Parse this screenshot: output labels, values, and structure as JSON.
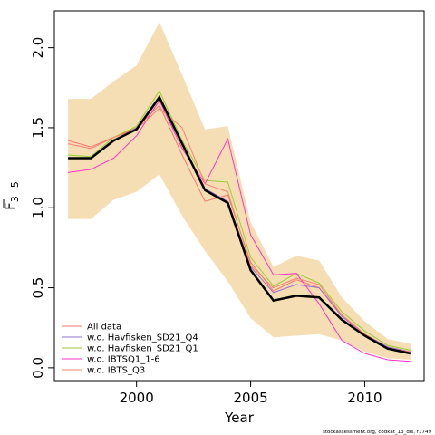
{
  "chart_data": {
    "type": "line",
    "xlabel": "Year",
    "ylabel_base": "F",
    "ylabel_sub": "3−5",
    "xlim": [
      1996.4,
      2012.6
    ],
    "ylim": [
      -0.08,
      2.23
    ],
    "xticks": [
      2000,
      2005,
      2010
    ],
    "yticks": [
      0.0,
      0.5,
      1.0,
      1.5,
      2.0
    ],
    "ytick_labels": [
      "0.0",
      "0.5",
      "1.0",
      "1.5",
      "2.0"
    ],
    "grid": false,
    "legend_position": "bottom-left",
    "band": {
      "color": "#F5DEB3",
      "x": [
        1997,
        1998,
        1999,
        2000,
        2001,
        2002,
        2003,
        2004,
        2005,
        2006,
        2007,
        2008,
        2009,
        2010,
        2011,
        2012
      ],
      "lower": [
        0.93,
        0.93,
        1.05,
        1.1,
        1.21,
        0.95,
        0.73,
        0.54,
        0.31,
        0.19,
        0.2,
        0.21,
        0.17,
        0.1,
        0.06,
        0.05
      ],
      "upper": [
        1.68,
        1.68,
        1.79,
        1.89,
        2.16,
        1.83,
        1.49,
        1.51,
        0.91,
        0.63,
        0.7,
        0.67,
        0.44,
        0.29,
        0.18,
        0.15
      ]
    },
    "main_series": {
      "color": "#000000",
      "values": [
        1.31,
        1.31,
        1.42,
        1.49,
        1.69,
        1.4,
        1.11,
        1.03,
        0.61,
        0.42,
        0.45,
        0.44,
        0.3,
        0.2,
        0.12,
        0.09
      ]
    },
    "series": [
      {
        "name": "All data",
        "color": "#F8766D",
        "values": [
          1.42,
          1.38,
          1.44,
          1.5,
          1.64,
          1.33,
          1.04,
          1.08,
          0.66,
          0.48,
          0.55,
          0.5,
          0.33,
          0.21,
          0.13,
          0.1
        ]
      },
      {
        "name": "w.o. Havfisken_SD21_Q4",
        "color": "#9A6FD6",
        "values": [
          1.31,
          1.31,
          1.42,
          1.5,
          1.7,
          1.41,
          1.12,
          1.04,
          0.63,
          0.47,
          0.52,
          0.5,
          0.32,
          0.21,
          0.13,
          0.1
        ]
      },
      {
        "name": "w.o. Havfisken_SD21_Q1",
        "color": "#9ACD32",
        "values": [
          1.33,
          1.32,
          1.44,
          1.51,
          1.73,
          1.42,
          1.17,
          1.16,
          0.69,
          0.51,
          0.59,
          0.53,
          0.35,
          0.23,
          0.14,
          0.11
        ]
      },
      {
        "name": "w.o. IBTSQ1_1-6",
        "color": "#FF33CC",
        "values": [
          1.22,
          1.24,
          1.31,
          1.45,
          1.67,
          1.37,
          1.15,
          1.43,
          0.83,
          0.58,
          0.59,
          0.4,
          0.17,
          0.09,
          0.05,
          0.04
        ]
      },
      {
        "name": "w.o. IBTS_Q3",
        "color": "#FA8072",
        "values": [
          1.4,
          1.37,
          1.44,
          1.49,
          1.62,
          1.5,
          1.15,
          1.1,
          0.64,
          0.5,
          0.56,
          0.52,
          0.33,
          0.21,
          0.12,
          0.1
        ]
      }
    ],
    "footnote": "stockassessment.org, codkat_13_dis, r1749"
  }
}
